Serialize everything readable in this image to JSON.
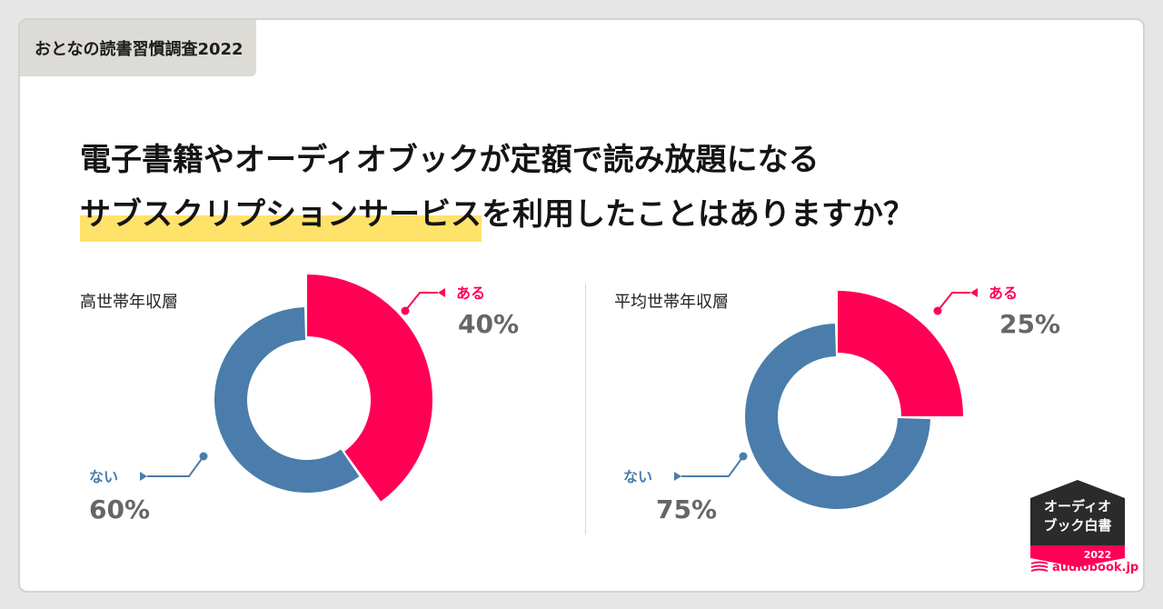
{
  "tag": "おとなの読書習慣調査2022",
  "question": {
    "line1": "電子書籍やオーディオブックが定額で読み放題になる",
    "line2_highlight": "サブスクリプションサービス",
    "line2_rest": "を利用したことはありますか？"
  },
  "chart_data": [
    {
      "type": "pie",
      "title": "高世帯年収層",
      "labels": [
        "ある",
        "ない"
      ],
      "values": [
        40,
        60
      ],
      "value_labels": [
        "40%",
        "60%"
      ],
      "colors": [
        "#ff0055",
        "#4a7dab"
      ]
    },
    {
      "type": "pie",
      "title": "平均世帯年収層",
      "labels": [
        "ある",
        "ない"
      ],
      "values": [
        25,
        75
      ],
      "value_labels": [
        "25%",
        "75%"
      ],
      "colors": [
        "#ff0055",
        "#4a7dab"
      ]
    }
  ],
  "badge": {
    "line1": "オーディオ",
    "line2": "ブック白書",
    "year": "2022"
  },
  "logo": {
    "text": "audiobook.jp",
    "icon": "book-stack-icon"
  }
}
